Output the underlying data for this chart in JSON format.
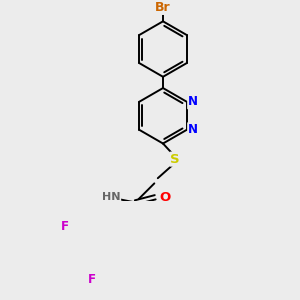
{
  "bg_color": "#ececec",
  "bond_color": "#000000",
  "bond_width": 1.4,
  "atom_colors": {
    "Br": "#cc6600",
    "N": "#0000ff",
    "S": "#cccc00",
    "O": "#ff0000",
    "F": "#cc00cc",
    "H": "#666666",
    "C": "#000000"
  },
  "font_size": 8.5
}
